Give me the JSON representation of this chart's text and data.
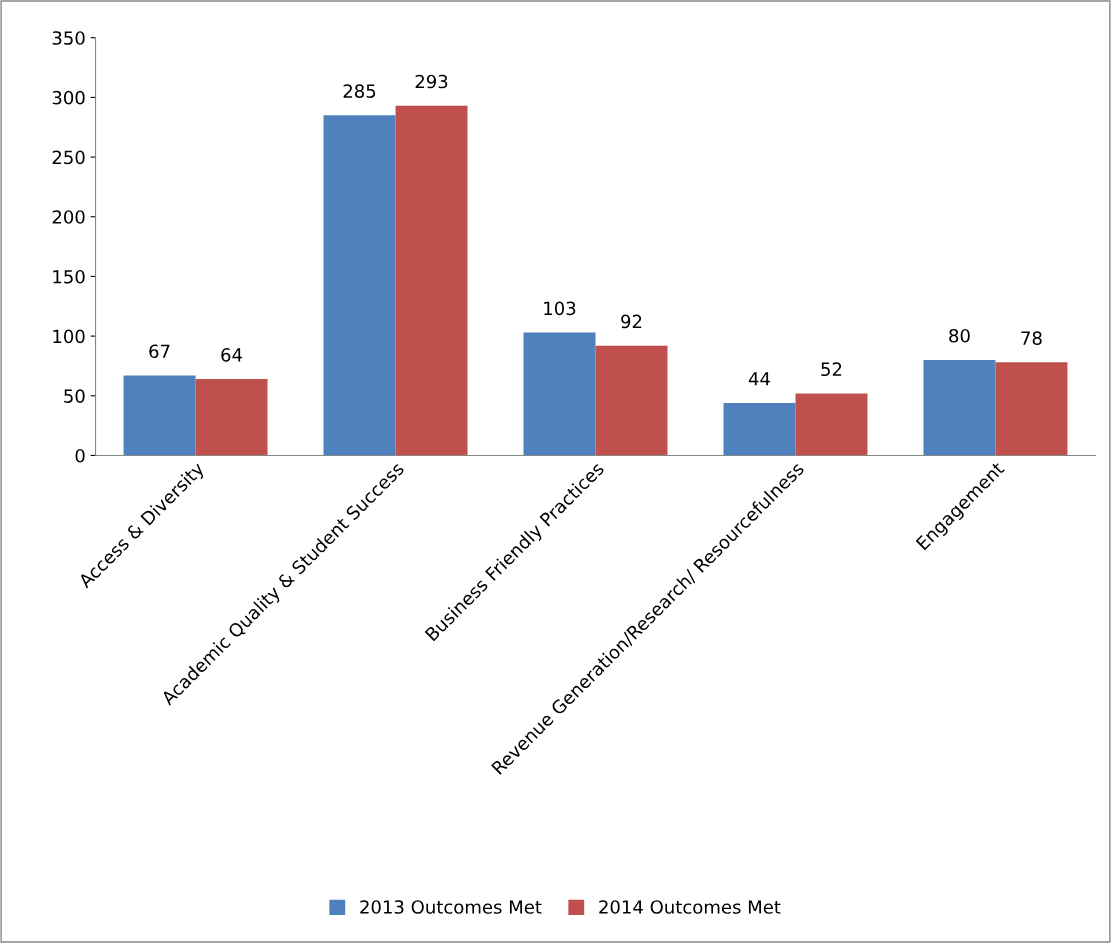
{
  "chart_data": {
    "type": "bar",
    "categories": [
      "Access & Diversity",
      "Academic Quality & Student Success",
      "Business Friendly Practices",
      "Revenue Generation/Research/ Resourcefulness",
      "Engagement"
    ],
    "series": [
      {
        "name": "2013 Outcomes Met",
        "color": "#4f81bd",
        "values": [
          67,
          285,
          103,
          44,
          80
        ]
      },
      {
        "name": "2014 Outcomes Met",
        "color": "#c0504d",
        "values": [
          64,
          293,
          92,
          52,
          78
        ]
      }
    ],
    "ylim": [
      0,
      350
    ],
    "yticks": [
      0,
      50,
      100,
      150,
      200,
      250,
      300,
      350
    ],
    "grid": false,
    "legend": "bottom",
    "data_labels": true
  }
}
